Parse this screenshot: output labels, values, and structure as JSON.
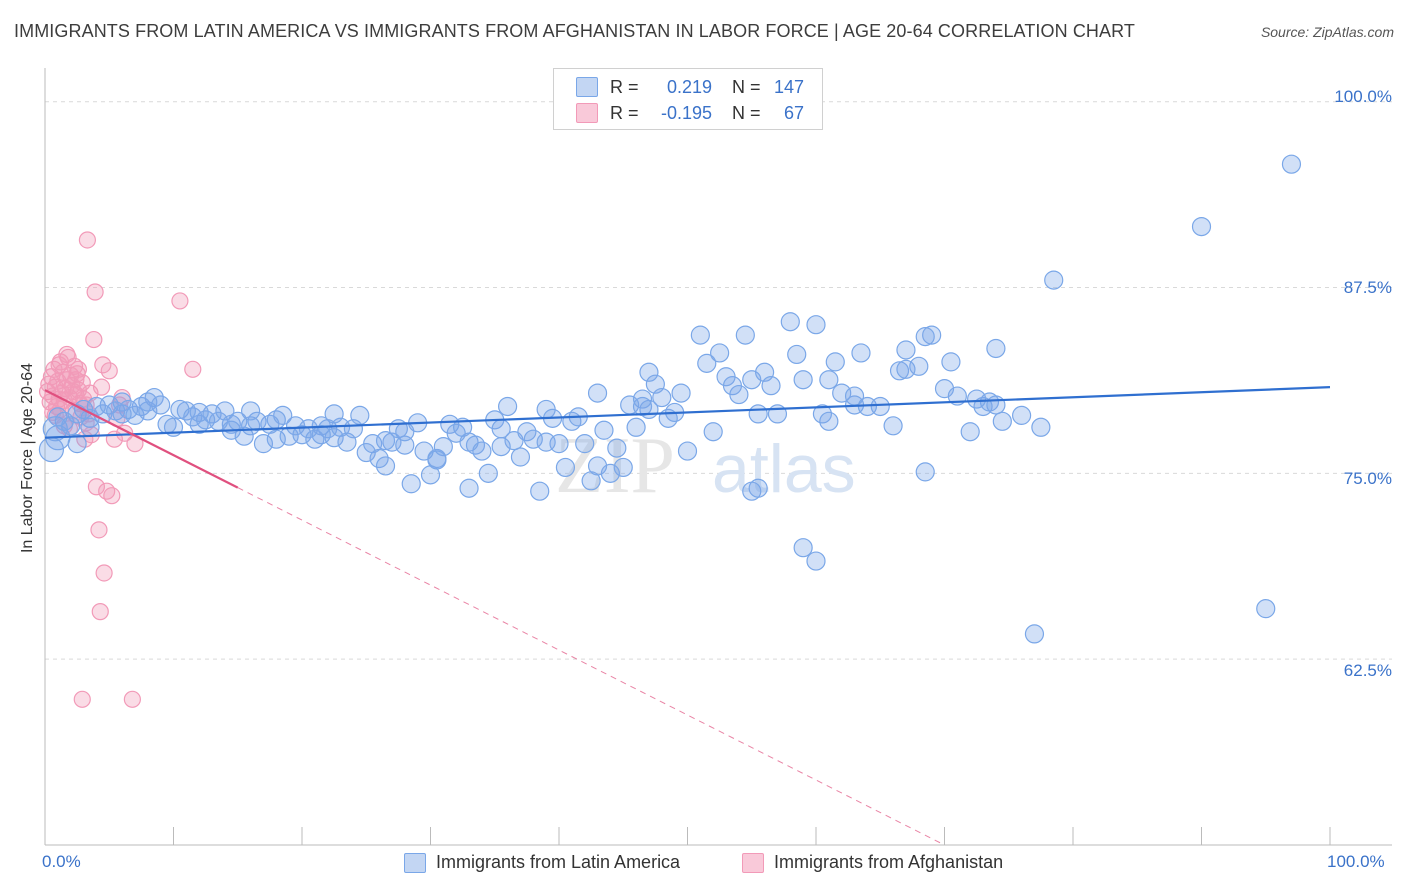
{
  "header": {
    "title": "IMMIGRANTS FROM LATIN AMERICA VS IMMIGRANTS FROM AFGHANISTAN IN LABOR FORCE | AGE 20-64 CORRELATION CHART",
    "source": "Source: ZipAtlas.com"
  },
  "legend": {
    "r_label": "R =",
    "n_label": "N =",
    "rows": [
      {
        "r": "0.219",
        "n": "147"
      },
      {
        "r": "-0.195",
        "n": "67"
      }
    ]
  },
  "watermark": {
    "zip": "ZIP",
    "atlas": "atlas"
  },
  "chart_data": {
    "type": "scatter",
    "title": "IMMIGRANTS FROM LATIN AMERICA VS IMMIGRANTS FROM AFGHANISTAN IN LABOR FORCE | AGE 20-64 CORRELATION CHART",
    "xlabel": "",
    "ylabel": "In Labor Force | Age 20-64",
    "xlim": [
      0,
      100
    ],
    "ylim": [
      50,
      102
    ],
    "x_tick_labels": [
      "0.0%",
      "100.0%"
    ],
    "y_ticks": [
      62.5,
      75.0,
      87.5,
      100.0
    ],
    "y_tick_labels": [
      "62.5%",
      "75.0%",
      "87.5%",
      "100.0%"
    ],
    "grid": true,
    "series": [
      {
        "name": "Immigrants from Latin America",
        "color": "#7aa7e8",
        "line_color": "#2f6fd0",
        "trend": {
          "x0": 0,
          "y0": 77.4,
          "x1": 100,
          "y1": 80.8,
          "dash_from": null
        },
        "points": [
          [
            0.5,
            76.6
          ],
          [
            0.8,
            78.0
          ],
          [
            1.0,
            77.4
          ],
          [
            1.5,
            78.5
          ],
          [
            2.0,
            78.2
          ],
          [
            2.5,
            79.0
          ],
          [
            3.0,
            79.3
          ],
          [
            3.5,
            78.7
          ],
          [
            4.0,
            79.5
          ],
          [
            4.5,
            79.0
          ],
          [
            5.0,
            79.6
          ],
          [
            5.5,
            79.2
          ],
          [
            6.0,
            79.8
          ],
          [
            6.5,
            79.3
          ],
          [
            7.0,
            78.9
          ],
          [
            7.5,
            79.5
          ],
          [
            8.0,
            79.2
          ],
          [
            8.5,
            80.1
          ],
          [
            9.0,
            79.6
          ],
          [
            9.5,
            78.3
          ],
          [
            10.0,
            78.1
          ],
          [
            10.5,
            79.3
          ],
          [
            11.0,
            79.2
          ],
          [
            11.5,
            78.8
          ],
          [
            12.0,
            78.3
          ],
          [
            12.5,
            78.6
          ],
          [
            13.0,
            79.0
          ],
          [
            13.5,
            78.5
          ],
          [
            14.0,
            79.2
          ],
          [
            14.5,
            78.3
          ],
          [
            15.0,
            78.5
          ],
          [
            15.5,
            77.5
          ],
          [
            16.0,
            78.2
          ],
          [
            16.5,
            78.5
          ],
          [
            17.0,
            77.0
          ],
          [
            17.5,
            78.3
          ],
          [
            18.0,
            77.3
          ],
          [
            18.5,
            78.9
          ],
          [
            19.0,
            77.5
          ],
          [
            19.5,
            78.2
          ],
          [
            20.0,
            77.6
          ],
          [
            20.5,
            78.0
          ],
          [
            21.0,
            77.3
          ],
          [
            21.5,
            78.2
          ],
          [
            22.0,
            78.0
          ],
          [
            22.5,
            77.4
          ],
          [
            23.0,
            78.1
          ],
          [
            23.5,
            77.1
          ],
          [
            24.0,
            78.0
          ],
          [
            24.5,
            78.9
          ],
          [
            25.0,
            76.4
          ],
          [
            25.5,
            77.0
          ],
          [
            26.0,
            76.0
          ],
          [
            26.5,
            75.5
          ],
          [
            27.0,
            77.1
          ],
          [
            27.5,
            78.0
          ],
          [
            28.0,
            76.9
          ],
          [
            28.5,
            74.3
          ],
          [
            29.0,
            78.4
          ],
          [
            29.5,
            76.5
          ],
          [
            30.0,
            74.9
          ],
          [
            30.5,
            76.0
          ],
          [
            31.0,
            76.8
          ],
          [
            31.5,
            78.3
          ],
          [
            32.0,
            77.7
          ],
          [
            32.5,
            78.1
          ],
          [
            33.0,
            77.1
          ],
          [
            33.5,
            76.9
          ],
          [
            34.0,
            76.5
          ],
          [
            34.5,
            75.0
          ],
          [
            35.0,
            78.6
          ],
          [
            35.5,
            78.0
          ],
          [
            36.0,
            79.5
          ],
          [
            36.5,
            77.2
          ],
          [
            37.0,
            76.1
          ],
          [
            37.5,
            77.8
          ],
          [
            38.0,
            77.3
          ],
          [
            38.5,
            73.8
          ],
          [
            39.0,
            79.3
          ],
          [
            39.5,
            78.7
          ],
          [
            40.0,
            77.0
          ],
          [
            40.5,
            75.4
          ],
          [
            41.0,
            78.5
          ],
          [
            41.5,
            78.8
          ],
          [
            42.0,
            77.0
          ],
          [
            42.5,
            74.5
          ],
          [
            43.0,
            80.4
          ],
          [
            43.5,
            77.9
          ],
          [
            44.0,
            75.0
          ],
          [
            44.5,
            76.7
          ],
          [
            45.0,
            75.4
          ],
          [
            45.5,
            79.6
          ],
          [
            46.0,
            78.1
          ],
          [
            46.5,
            80.0
          ],
          [
            47.0,
            79.3
          ],
          [
            47.5,
            81.0
          ],
          [
            48.0,
            80.1
          ],
          [
            48.5,
            78.7
          ],
          [
            49.0,
            79.1
          ],
          [
            49.5,
            80.4
          ],
          [
            50.0,
            76.5
          ],
          [
            51.0,
            84.3
          ],
          [
            52.0,
            77.8
          ],
          [
            52.5,
            83.1
          ],
          [
            53.0,
            81.5
          ],
          [
            53.5,
            80.9
          ],
          [
            54.0,
            80.3
          ],
          [
            54.5,
            84.3
          ],
          [
            55.0,
            73.8
          ],
          [
            55.5,
            79.0
          ],
          [
            56.0,
            81.8
          ],
          [
            56.5,
            80.9
          ],
          [
            57.0,
            79.0
          ],
          [
            58.0,
            85.2
          ],
          [
            59.0,
            81.3
          ],
          [
            60.0,
            85.0
          ],
          [
            60.5,
            79.0
          ],
          [
            61.0,
            81.3
          ],
          [
            61.5,
            82.5
          ],
          [
            62.0,
            80.4
          ],
          [
            63.0,
            79.6
          ],
          [
            63.5,
            83.1
          ],
          [
            64.0,
            79.5
          ],
          [
            65.0,
            79.5
          ],
          [
            66.0,
            78.2
          ],
          [
            66.5,
            81.9
          ],
          [
            67.0,
            83.3
          ],
          [
            68.0,
            82.2
          ],
          [
            68.5,
            75.1
          ],
          [
            69.0,
            84.3
          ],
          [
            70.0,
            80.7
          ],
          [
            70.5,
            82.5
          ],
          [
            71.0,
            80.2
          ],
          [
            72.0,
            77.8
          ],
          [
            73.0,
            79.5
          ],
          [
            73.5,
            79.8
          ],
          [
            74.0,
            83.4
          ],
          [
            74.5,
            78.5
          ],
          [
            76.0,
            78.9
          ],
          [
            77.0,
            64.2
          ],
          [
            77.5,
            78.1
          ],
          [
            78.5,
            88.0
          ],
          [
            59.0,
            70.0
          ],
          [
            60.0,
            69.1
          ],
          [
            67.0,
            82.0
          ],
          [
            90.0,
            91.6
          ],
          [
            97.0,
            95.8
          ],
          [
            95.0,
            65.9
          ],
          [
            1.0,
            78.8
          ],
          [
            2.5,
            77.0
          ],
          [
            3.5,
            78.1
          ],
          [
            6.0,
            79.0
          ],
          [
            8.0,
            79.8
          ],
          [
            12.0,
            79.1
          ],
          [
            14.5,
            77.9
          ],
          [
            16.0,
            79.2
          ],
          [
            18.0,
            78.6
          ],
          [
            21.5,
            77.6
          ],
          [
            26.5,
            77.2
          ],
          [
            30.5,
            75.9
          ],
          [
            35.5,
            76.8
          ],
          [
            39.0,
            77.1
          ],
          [
            43.0,
            75.5
          ],
          [
            46.5,
            79.5
          ],
          [
            51.5,
            82.4
          ],
          [
            55.0,
            81.3
          ],
          [
            58.5,
            83.0
          ],
          [
            63.0,
            80.2
          ],
          [
            68.5,
            84.2
          ],
          [
            72.5,
            80.0
          ],
          [
            74.0,
            79.6
          ],
          [
            61.0,
            78.5
          ],
          [
            47.0,
            81.8
          ],
          [
            55.5,
            74.0
          ],
          [
            33.0,
            74.0
          ],
          [
            28.0,
            77.8
          ],
          [
            22.5,
            79.0
          ]
        ]
      },
      {
        "name": "Immigrants from Afghanistan",
        "color": "#f29ab8",
        "line_color": "#e0507f",
        "trend": {
          "x0": 0,
          "y0": 80.6,
          "x1": 70,
          "y1": 50.0,
          "dash_from": 15
        },
        "points": [
          [
            0.2,
            80.5
          ],
          [
            0.3,
            81.0
          ],
          [
            0.4,
            79.8
          ],
          [
            0.5,
            81.5
          ],
          [
            0.6,
            80.2
          ],
          [
            0.7,
            82.0
          ],
          [
            0.8,
            80.8
          ],
          [
            0.9,
            79.5
          ],
          [
            1.0,
            81.2
          ],
          [
            1.1,
            80.0
          ],
          [
            1.2,
            82.5
          ],
          [
            1.3,
            80.4
          ],
          [
            1.4,
            81.8
          ],
          [
            1.5,
            79.9
          ],
          [
            1.6,
            80.7
          ],
          [
            1.7,
            81.3
          ],
          [
            1.8,
            82.8
          ],
          [
            1.9,
            80.1
          ],
          [
            2.0,
            81.6
          ],
          [
            2.1,
            80.9
          ],
          [
            2.2,
            79.2
          ],
          [
            2.3,
            82.2
          ],
          [
            2.4,
            80.3
          ],
          [
            2.5,
            81.7
          ],
          [
            2.6,
            80.6
          ],
          [
            2.7,
            79.7
          ],
          [
            2.8,
            78.8
          ],
          [
            2.9,
            81.1
          ],
          [
            3.0,
            80.0
          ],
          [
            3.1,
            77.3
          ],
          [
            3.2,
            78.4
          ],
          [
            3.3,
            90.7
          ],
          [
            3.4,
            79.0
          ],
          [
            3.6,
            77.6
          ],
          [
            3.8,
            84.0
          ],
          [
            3.9,
            87.2
          ],
          [
            4.0,
            74.1
          ],
          [
            4.2,
            71.2
          ],
          [
            4.3,
            65.7
          ],
          [
            4.5,
            82.3
          ],
          [
            4.6,
            68.3
          ],
          [
            4.8,
            73.8
          ],
          [
            5.0,
            81.9
          ],
          [
            5.2,
            73.5
          ],
          [
            5.4,
            77.3
          ],
          [
            5.6,
            78.7
          ],
          [
            5.8,
            79.6
          ],
          [
            6.0,
            80.1
          ],
          [
            6.2,
            77.7
          ],
          [
            2.9,
            59.8
          ],
          [
            6.8,
            59.8
          ],
          [
            7.0,
            77.0
          ],
          [
            10.5,
            86.6
          ],
          [
            11.5,
            82.0
          ],
          [
            1.5,
            78.2
          ],
          [
            2.2,
            80.5
          ],
          [
            0.8,
            78.9
          ],
          [
            1.2,
            79.3
          ],
          [
            1.7,
            83.0
          ],
          [
            2.6,
            82.0
          ],
          [
            3.5,
            80.4
          ],
          [
            0.6,
            79.1
          ],
          [
            1.9,
            78.0
          ],
          [
            3.2,
            79.6
          ],
          [
            4.4,
            80.8
          ],
          [
            2.4,
            81.3
          ],
          [
            1.1,
            82.3
          ]
        ]
      }
    ]
  },
  "bottom_legend": [
    {
      "label": "Immigrants from Latin America"
    },
    {
      "label": "Immigrants from Afghanistan"
    }
  ]
}
